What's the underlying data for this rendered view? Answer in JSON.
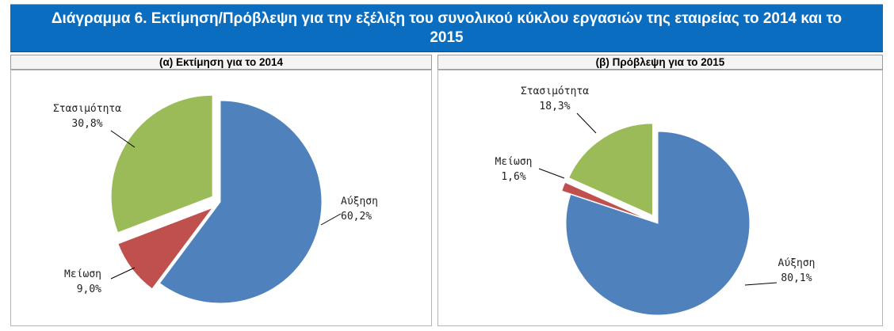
{
  "title": "Διάγραμμα 6. Εκτίμηση/Πρόβλεψη για την εξέλιξη του συνολικού κύκλου εργασιών της εταιρείας το 2014 και το 2015",
  "chart_data": [
    {
      "type": "pie",
      "title": "(α) Εκτίμηση για το 2014",
      "slices": [
        {
          "label": "Αύξηση",
          "value": 60.2,
          "value_label": "60,2%",
          "color": "#4f81bd"
        },
        {
          "label": "Μείωση",
          "value": 9.0,
          "value_label": "9,0%",
          "color": "#c0504d"
        },
        {
          "label": "Στασιμότητα",
          "value": 30.8,
          "value_label": "30,8%",
          "color": "#9bbb59"
        }
      ]
    },
    {
      "type": "pie",
      "title": "(β) Πρόβλεψη για το 2015",
      "slices": [
        {
          "label": "Αύξηση",
          "value": 80.1,
          "value_label": "80,1%",
          "color": "#4f81bd"
        },
        {
          "label": "Μείωση",
          "value": 1.6,
          "value_label": "1,6%",
          "color": "#c0504d"
        },
        {
          "label": "Στασιμότητα",
          "value": 18.3,
          "value_label": "18,3%",
          "color": "#9bbb59"
        }
      ]
    }
  ]
}
